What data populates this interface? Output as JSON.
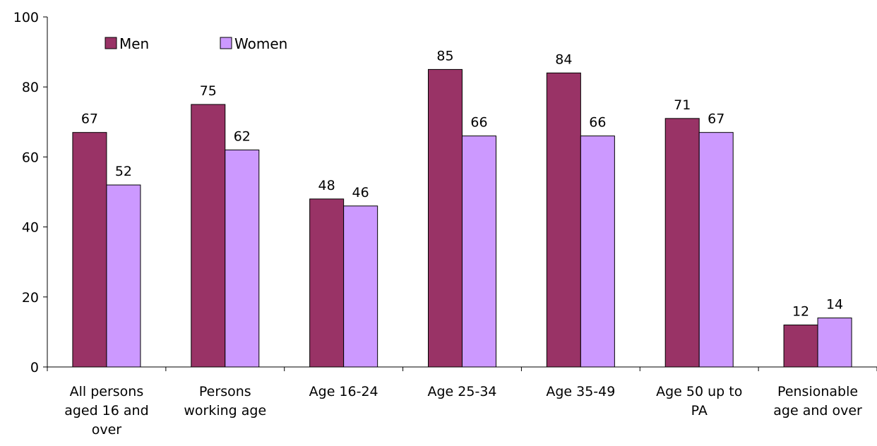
{
  "chart_data": {
    "type": "bar",
    "categories": [
      [
        "All persons",
        "aged 16 and",
        "over"
      ],
      [
        "Persons",
        "working age"
      ],
      [
        "Age 16-24"
      ],
      [
        "Age 25-34"
      ],
      [
        "Age 35-49"
      ],
      [
        "Age 50 up to",
        "PA"
      ],
      [
        "Pensionable",
        "age and over"
      ]
    ],
    "series": [
      {
        "name": "Men",
        "color": "#993366",
        "values": [
          67,
          75,
          48,
          85,
          84,
          71,
          12
        ],
        "value_labels": [
          "67",
          "75",
          "48",
          "85",
          "84",
          "71",
          "12"
        ]
      },
      {
        "name": "Women",
        "color": "#cc99ff",
        "values": [
          52,
          62,
          46,
          66,
          66,
          67,
          14
        ],
        "value_labels": [
          "52",
          "62",
          "46",
          "66",
          "66",
          "67",
          "14"
        ]
      }
    ],
    "ylim": [
      0,
      100
    ],
    "yticks": [
      0,
      20,
      40,
      60,
      80,
      100
    ],
    "grid": false,
    "legend_position": "top-left",
    "title": "",
    "xlabel": "",
    "ylabel": ""
  }
}
